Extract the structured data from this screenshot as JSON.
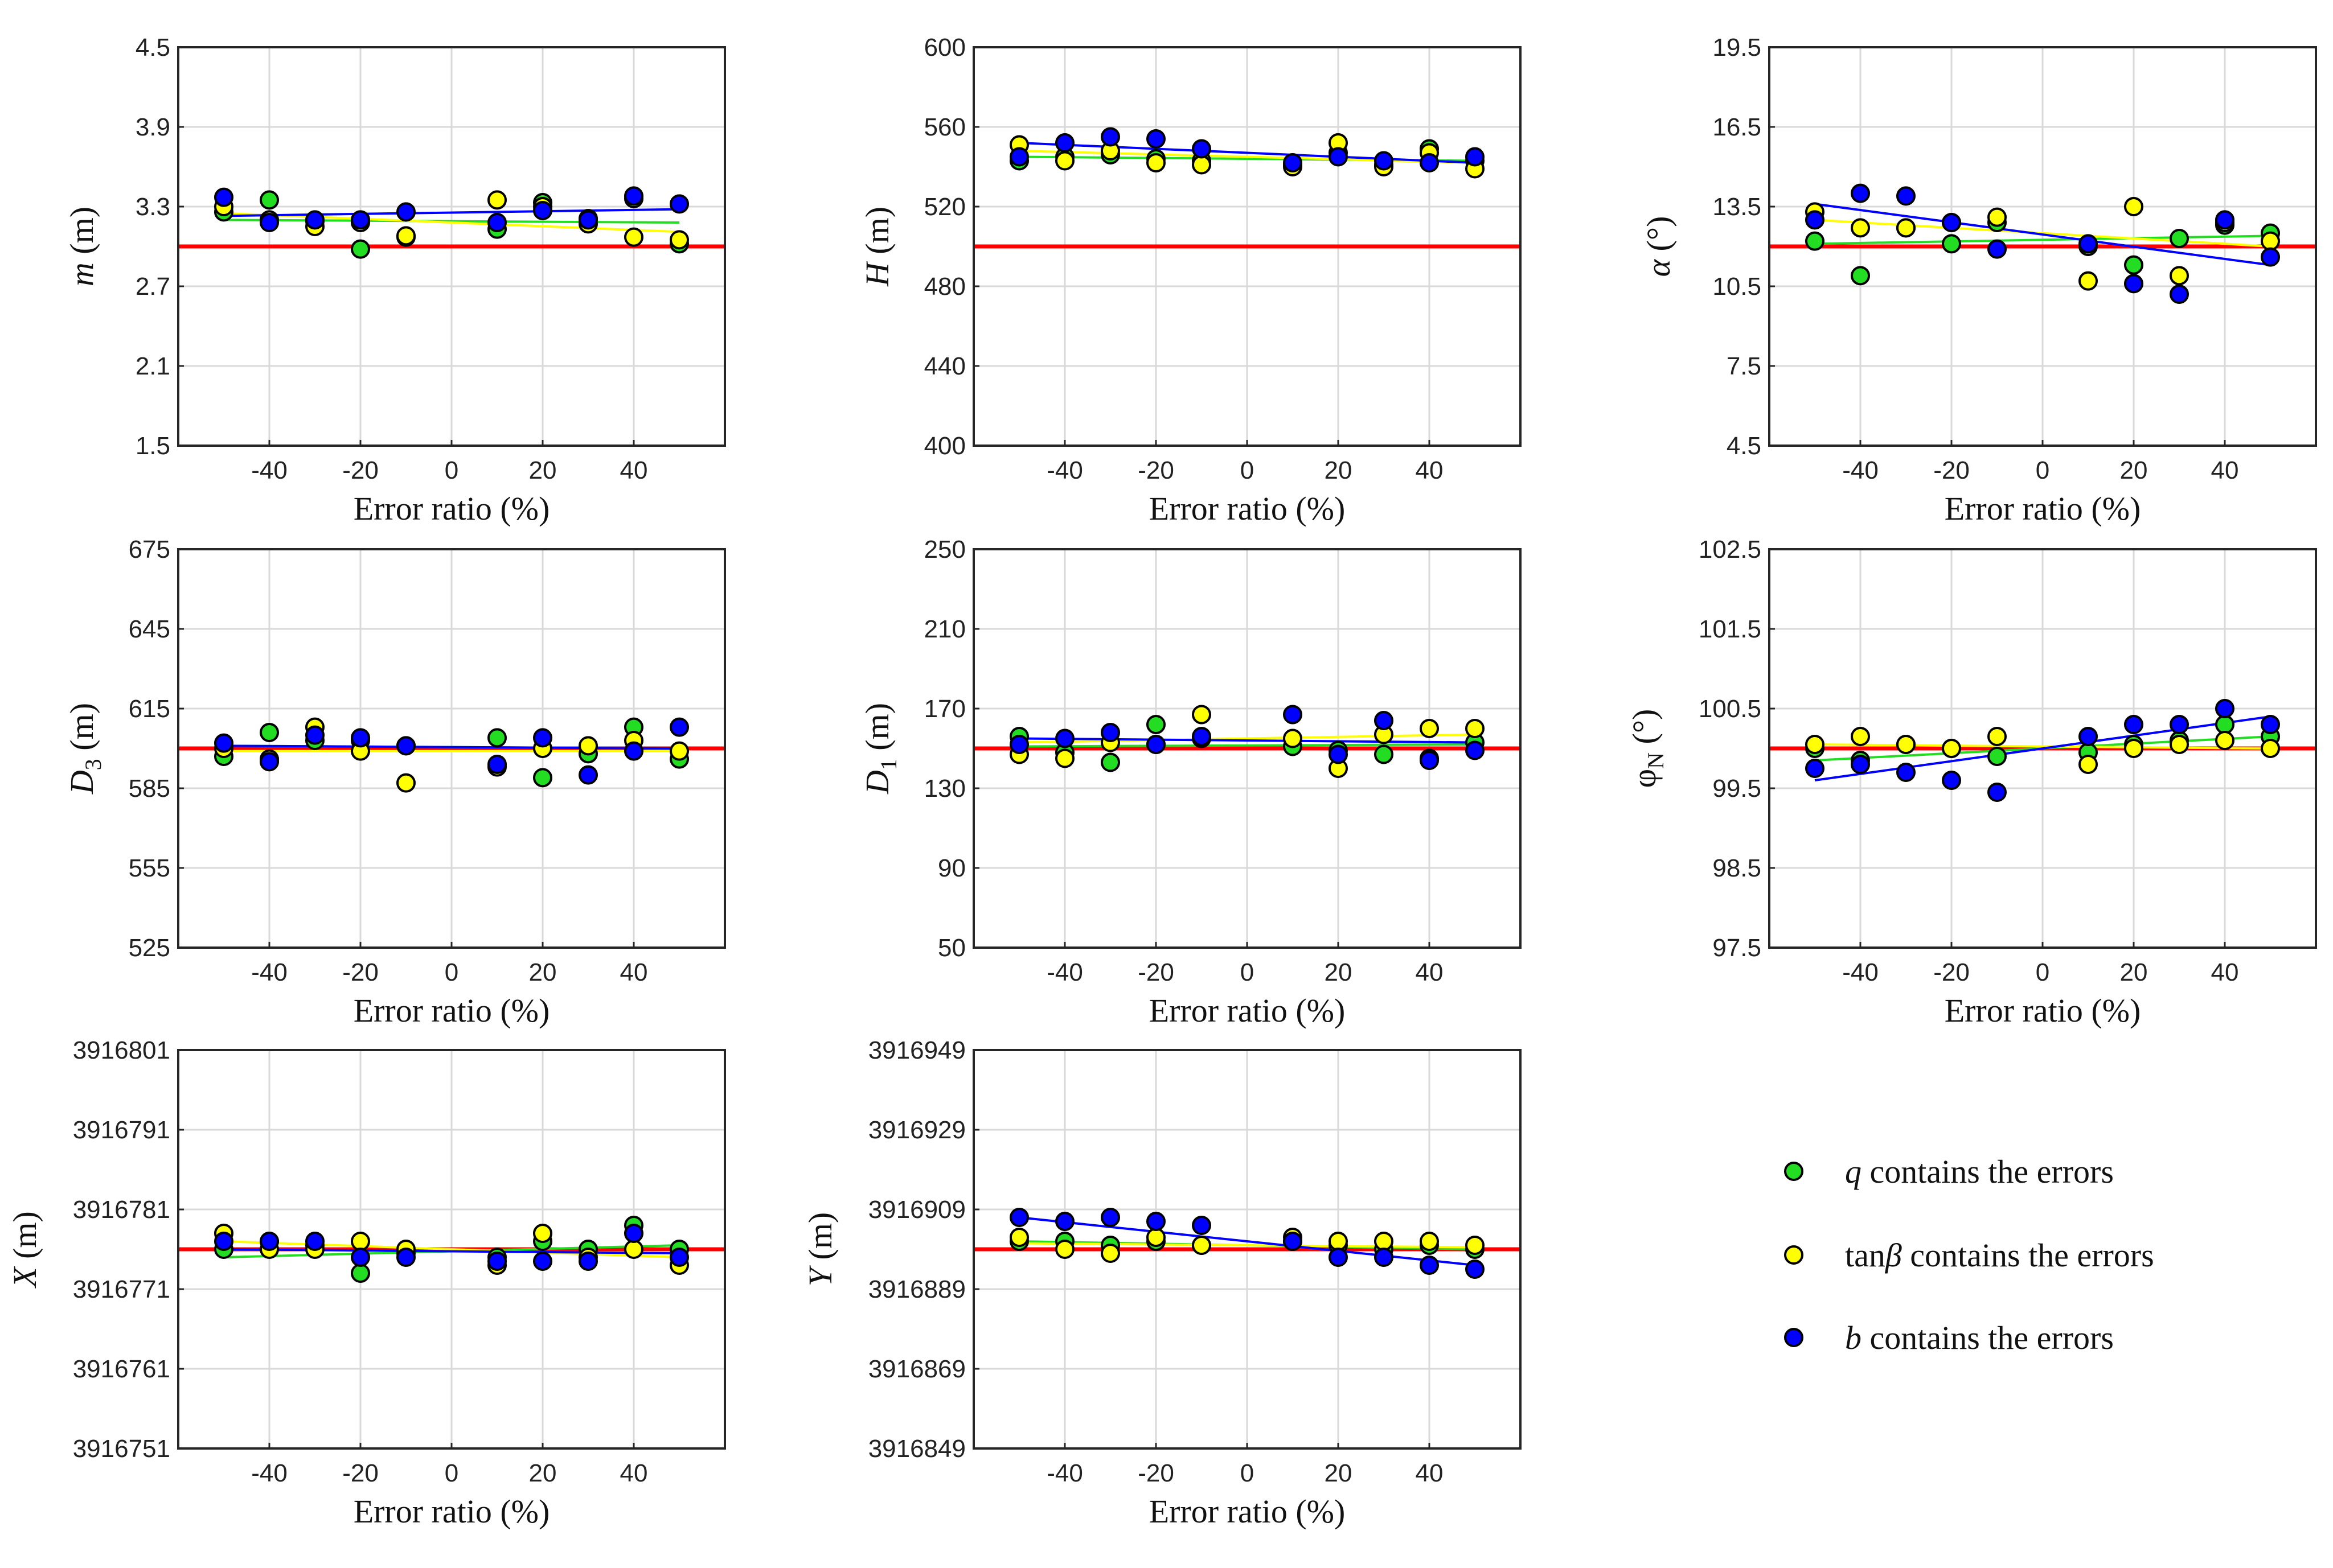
{
  "colors": {
    "q": "#22dd22",
    "tanb": "#ffff00",
    "b": "#0000ff",
    "reference": "#ff0000",
    "marker_edge": "#000000"
  },
  "legend": [
    {
      "series": "q",
      "pre_italic": "q",
      "pre_plain": "",
      "post_italic": "",
      "text": " contains the errors"
    },
    {
      "series": "tanb",
      "pre_italic": "",
      "pre_plain": "tan",
      "post_italic": "β",
      "text": " contains the errors"
    },
    {
      "series": "b",
      "pre_italic": "b",
      "pre_plain": "",
      "post_italic": "",
      "text": " contains the errors"
    }
  ],
  "chart_data": [
    {
      "type": "scatter",
      "id": "m",
      "ylabel": {
        "main": "m",
        "italic": true,
        "sub": "",
        "unit": " (m)"
      },
      "xlabel": "Error ratio (%)",
      "xlim": [
        -60,
        60
      ],
      "xticks": [
        -40,
        -20,
        0,
        20,
        40
      ],
      "ylim": [
        1.5,
        4.5
      ],
      "yticks": [
        "1.5",
        "2.1",
        "2.7",
        "3.3",
        "3.9",
        "4.5"
      ],
      "grid": true,
      "reference": 3.0,
      "x": [
        -50,
        -40,
        -30,
        -20,
        -10,
        10,
        20,
        30,
        40,
        50
      ],
      "series": [
        {
          "name": "q",
          "values": [
            3.26,
            3.35,
            3.19,
            2.98,
            3.07,
            3.13,
            3.33,
            3.21,
            3.36,
            3.02
          ],
          "trend": [
            3.2,
            3.18
          ]
        },
        {
          "name": "tanb",
          "values": [
            3.3,
            3.2,
            3.15,
            3.18,
            3.08,
            3.35,
            3.3,
            3.17,
            3.07,
            3.05
          ],
          "trend": [
            3.25,
            3.11
          ]
        },
        {
          "name": "b",
          "values": [
            3.37,
            3.18,
            3.2,
            3.2,
            3.26,
            3.18,
            3.27,
            3.2,
            3.38,
            3.32
          ],
          "trend": [
            3.23,
            3.28
          ]
        }
      ]
    },
    {
      "type": "scatter",
      "id": "H",
      "ylabel": {
        "main": "H",
        "italic": true,
        "sub": "",
        "unit": " (m)"
      },
      "xlabel": "Error ratio (%)",
      "xlim": [
        -60,
        60
      ],
      "xticks": [
        -40,
        -20,
        0,
        20,
        40
      ],
      "ylim": [
        400,
        600
      ],
      "yticks": [
        "400",
        "440",
        "480",
        "520",
        "560",
        "600"
      ],
      "grid": true,
      "reference": 500,
      "x": [
        -50,
        -40,
        -30,
        -20,
        -10,
        10,
        20,
        30,
        40,
        50
      ],
      "series": [
        {
          "name": "q",
          "values": [
            543,
            545,
            546,
            544,
            543,
            541,
            547,
            541,
            549,
            543
          ],
          "trend": [
            545,
            543
          ]
        },
        {
          "name": "tanb",
          "values": [
            551,
            543,
            548,
            542,
            541,
            540,
            552,
            540,
            547,
            539
          ],
          "trend": [
            548,
            542
          ]
        },
        {
          "name": "b",
          "values": [
            545,
            552,
            555,
            554,
            549,
            542,
            545,
            543,
            542,
            545
          ],
          "trend": [
            552,
            542
          ]
        }
      ]
    },
    {
      "type": "scatter",
      "id": "alpha",
      "ylabel": {
        "main": "α",
        "italic": true,
        "sub": "",
        "unit": " (°)"
      },
      "xlabel": "Error ratio (%)",
      "xlim": [
        -60,
        60
      ],
      "xticks": [
        -40,
        -20,
        0,
        20,
        40
      ],
      "ylim": [
        4.5,
        19.5
      ],
      "yticks": [
        "4.5",
        "7.5",
        "10.5",
        "13.5",
        "16.5",
        "19.5"
      ],
      "grid": true,
      "reference": 12.0,
      "x": [
        -50,
        -40,
        -30,
        -20,
        -10,
        10,
        20,
        30,
        40,
        50
      ],
      "series": [
        {
          "name": "q",
          "values": [
            12.2,
            10.9,
            12.7,
            12.1,
            12.9,
            12.0,
            11.3,
            12.3,
            12.8,
            12.5
          ],
          "trend": [
            12.1,
            12.4
          ]
        },
        {
          "name": "tanb",
          "values": [
            13.3,
            12.7,
            12.7,
            12.9,
            13.1,
            10.7,
            13.5,
            10.9,
            12.9,
            12.2
          ],
          "trend": [
            13.0,
            12.0
          ]
        },
        {
          "name": "b",
          "values": [
            13.0,
            14.0,
            13.9,
            12.9,
            11.9,
            12.1,
            10.6,
            10.2,
            13.0,
            11.6
          ],
          "trend": [
            13.6,
            11.3
          ]
        }
      ]
    },
    {
      "type": "scatter",
      "id": "D3",
      "ylabel": {
        "main": "D",
        "italic": true,
        "sub": "3",
        "unit": " (m)"
      },
      "xlabel": "Error ratio (%)",
      "xlim": [
        -60,
        60
      ],
      "xticks": [
        -40,
        -20,
        0,
        20,
        40
      ],
      "ylim": [
        525,
        675
      ],
      "yticks": [
        "525",
        "555",
        "585",
        "615",
        "645",
        "675"
      ],
      "grid": true,
      "reference": 600,
      "x": [
        -50,
        -40,
        -30,
        -20,
        -10,
        10,
        20,
        30,
        40,
        50
      ],
      "series": [
        {
          "name": "q",
          "values": [
            597,
            606,
            603,
            603,
            601,
            604,
            589,
            598,
            608,
            596
          ],
          "trend": [
            601,
            600
          ]
        },
        {
          "name": "tanb",
          "values": [
            600,
            596,
            608,
            599,
            587,
            593,
            600,
            601,
            603,
            599
          ],
          "trend": [
            599,
            599
          ]
        },
        {
          "name": "b",
          "values": [
            602,
            595,
            605,
            604,
            601,
            594,
            604,
            590,
            599,
            608
          ],
          "trend": [
            601,
            600
          ]
        }
      ]
    },
    {
      "type": "scatter",
      "id": "D1",
      "ylabel": {
        "main": "D",
        "italic": true,
        "sub": "1",
        "unit": " (m)"
      },
      "xlabel": "Error ratio (%)",
      "xlim": [
        -60,
        60
      ],
      "xticks": [
        -40,
        -20,
        0,
        20,
        40
      ],
      "ylim": [
        50,
        250
      ],
      "yticks": [
        "50",
        "90",
        "130",
        "170",
        "210",
        "250"
      ],
      "grid": true,
      "reference": 150,
      "x": [
        -50,
        -40,
        -30,
        -20,
        -10,
        10,
        20,
        30,
        40,
        50
      ],
      "series": [
        {
          "name": "q",
          "values": [
            156,
            148,
            143,
            162,
            155,
            151,
            149,
            147,
            145,
            153
          ],
          "trend": [
            151,
            152
          ]
        },
        {
          "name": "tanb",
          "values": [
            147,
            145,
            153,
            152,
            167,
            155,
            140,
            157,
            160,
            160
          ],
          "trend": [
            153,
            157
          ]
        },
        {
          "name": "b",
          "values": [
            152,
            155,
            158,
            152,
            156,
            167,
            147,
            164,
            144,
            149
          ],
          "trend": [
            155,
            153
          ]
        }
      ]
    },
    {
      "type": "scatter",
      "id": "phiN",
      "ylabel": {
        "main": "φ",
        "italic": false,
        "sub": "N",
        "unit": " (°)"
      },
      "xlabel": "Error ratio (%)",
      "xlim": [
        -60,
        60
      ],
      "xticks": [
        -40,
        -20,
        0,
        20,
        40
      ],
      "ylim": [
        97.5,
        102.5
      ],
      "yticks": [
        "97.5",
        "98.5",
        "99.5",
        "100.5",
        "101.5",
        "102.5"
      ],
      "grid": true,
      "reference": 100.0,
      "x": [
        -50,
        -40,
        -30,
        -20,
        -10,
        10,
        20,
        30,
        40,
        50
      ],
      "series": [
        {
          "name": "q",
          "values": [
            100.0,
            99.85,
            100.05,
            100.0,
            99.9,
            99.95,
            100.05,
            100.1,
            100.3,
            100.15
          ],
          "trend": [
            99.85,
            100.15
          ]
        },
        {
          "name": "tanb",
          "values": [
            100.05,
            100.15,
            100.05,
            100.0,
            100.15,
            99.8,
            100.0,
            100.05,
            100.1,
            100.0
          ],
          "trend": [
            100.05,
            100.0
          ]
        },
        {
          "name": "b",
          "values": [
            99.75,
            99.8,
            99.7,
            99.6,
            99.45,
            100.15,
            100.3,
            100.3,
            100.5,
            100.3
          ],
          "trend": [
            99.6,
            100.4
          ]
        }
      ]
    },
    {
      "type": "scatter",
      "id": "X",
      "ylabel": {
        "main": "X",
        "italic": true,
        "sub": "",
        "unit": " (m)"
      },
      "xlabel": "Error ratio (%)",
      "xlim": [
        -60,
        60
      ],
      "xticks": [
        -40,
        -20,
        0,
        20,
        40
      ],
      "ylim": [
        3916751,
        3916801
      ],
      "yticks": [
        "3916751",
        "3916761",
        "3916771",
        "3916781",
        "3916791",
        "3916801"
      ],
      "grid": true,
      "reference": 3916776,
      "x": [
        -50,
        -40,
        -30,
        -20,
        -10,
        10,
        20,
        30,
        40,
        50
      ],
      "series": [
        {
          "name": "q",
          "values": [
            3916776,
            3916777,
            3916776.5,
            3916773,
            3916775.5,
            3916775,
            3916777,
            3916776,
            3916779,
            3916776
          ],
          "trend": [
            3916775,
            3916776.5
          ]
        },
        {
          "name": "tanb",
          "values": [
            3916778,
            3916776,
            3916776,
            3916777,
            3916776,
            3916774,
            3916778,
            3916775,
            3916776,
            3916774
          ],
          "trend": [
            3916777,
            3916775
          ]
        },
        {
          "name": "b",
          "values": [
            3916777,
            3916777,
            3916777,
            3916775,
            3916775,
            3916774.5,
            3916774.5,
            3916774.5,
            3916778,
            3916775
          ],
          "trend": [
            3916776,
            3916775.5
          ]
        }
      ]
    },
    {
      "type": "scatter",
      "id": "Y",
      "ylabel": {
        "main": "Y",
        "italic": true,
        "sub": "",
        "unit": " (m)"
      },
      "xlabel": "Error ratio (%)",
      "xlim": [
        -60,
        60
      ],
      "xticks": [
        -40,
        -20,
        0,
        20,
        40
      ],
      "ylim": [
        3916849,
        3916949
      ],
      "yticks": [
        "3916849",
        "3916869",
        "3916889",
        "3916909",
        "3916929",
        "3916949"
      ],
      "grid": true,
      "reference": 3916899,
      "x": [
        -50,
        -40,
        -30,
        -20,
        -10,
        10,
        20,
        30,
        40,
        50
      ],
      "series": [
        {
          "name": "q",
          "values": [
            3916901,
            3916901,
            3916900,
            3916901,
            3916900,
            3916901,
            3916900,
            3916899,
            3916900,
            3916899
          ],
          "trend": [
            3916901,
            3916899
          ]
        },
        {
          "name": "tanb",
          "values": [
            3916902,
            3916899,
            3916898,
            3916902,
            3916900,
            3916902,
            3916901,
            3916901,
            3916901,
            3916900
          ],
          "trend": [
            3916900.5,
            3916899.5
          ]
        },
        {
          "name": "b",
          "values": [
            3916907,
            3916906,
            3916907,
            3916906,
            3916905,
            3916901,
            3916897,
            3916897,
            3916895,
            3916894
          ],
          "trend": [
            3916907,
            3916895
          ]
        }
      ]
    }
  ]
}
